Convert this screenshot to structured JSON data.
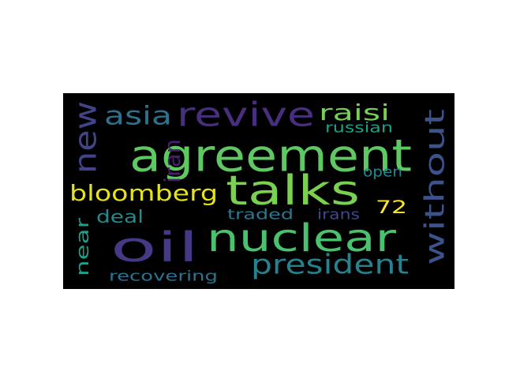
{
  "background": "#000000",
  "words": [
    {
      "text": "agreement",
      "color": "#5ec962"
    },
    {
      "text": "talks",
      "color": "#7ad151"
    },
    {
      "text": "nuclear",
      "color": "#4ac16d"
    },
    {
      "text": "oil",
      "color": "#443983"
    },
    {
      "text": "revive",
      "color": "#472f7d"
    },
    {
      "text": "without",
      "color": "#3b528b"
    },
    {
      "text": "president",
      "color": "#26828e"
    },
    {
      "text": "new",
      "color": "#414487"
    },
    {
      "text": "asia",
      "color": "#2c728e"
    },
    {
      "text": "raisi",
      "color": "#75d054"
    },
    {
      "text": "bloomberg",
      "color": "#e5e419"
    },
    {
      "text": "iran",
      "color": "#481f70"
    },
    {
      "text": "deal",
      "color": "#228b8d"
    },
    {
      "text": "near",
      "color": "#1f9e89"
    },
    {
      "text": "72",
      "color": "#fde725"
    },
    {
      "text": "russian",
      "color": "#1fa088"
    },
    {
      "text": "open",
      "color": "#25858e"
    },
    {
      "text": "traded",
      "color": "#2a788e"
    },
    {
      "text": "irans",
      "color": "#3e4989"
    },
    {
      "text": "recovering",
      "color": "#2c728e"
    }
  ]
}
